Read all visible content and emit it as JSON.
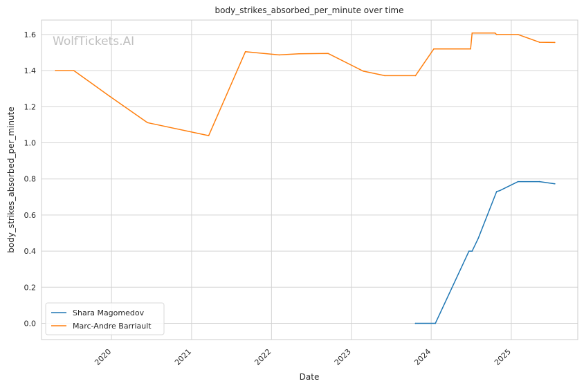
{
  "chart_data": {
    "type": "line",
    "title": "body_strikes_absorbed_per_minute over time",
    "xlabel": "Date",
    "ylabel": "body_strikes_absorbed_per_minute",
    "watermark": "WolfTickets.AI",
    "xlim": [
      "2019-02-15",
      "2025-11-01"
    ],
    "ylim": [
      -0.09,
      1.68
    ],
    "x_ticks": [
      "2020",
      "2021",
      "2022",
      "2023",
      "2024",
      "2025"
    ],
    "y_ticks": [
      "0.0",
      "0.2",
      "0.4",
      "0.6",
      "0.8",
      "1.0",
      "1.2",
      "1.4",
      "1.6"
    ],
    "grid": true,
    "legend_position": "lower-left",
    "colors": {
      "series_1": "#1f77b4",
      "series_2": "#ff7f0e",
      "grid": "#d3d3d3",
      "spine": "#cccccc"
    },
    "series": [
      {
        "name": "Shara Magomedov",
        "color": "#1f77b4",
        "points": [
          [
            "2023-10-21",
            0.0
          ],
          [
            "2024-01-20",
            0.0
          ],
          [
            "2024-06-22",
            0.4
          ],
          [
            "2024-07-06",
            0.4
          ],
          [
            "2024-08-03",
            0.47
          ],
          [
            "2024-10-26",
            0.73
          ],
          [
            "2024-11-09",
            0.735
          ],
          [
            "2025-02-01",
            0.785
          ],
          [
            "2025-05-10",
            0.785
          ],
          [
            "2025-07-19",
            0.773
          ]
        ]
      },
      {
        "name": "Marc-Andre Barriault",
        "color": "#ff7f0e",
        "points": [
          [
            "2019-04-20",
            1.4
          ],
          [
            "2019-07-13",
            1.4
          ],
          [
            "2019-12-21",
            1.26
          ],
          [
            "2020-06-13",
            1.112
          ],
          [
            "2021-03-20",
            1.04
          ],
          [
            "2021-09-04",
            1.505
          ],
          [
            "2022-02-05",
            1.487
          ],
          [
            "2022-05-07",
            1.493
          ],
          [
            "2022-09-17",
            1.495
          ],
          [
            "2023-02-25",
            1.397
          ],
          [
            "2023-06-03",
            1.372
          ],
          [
            "2023-10-21",
            1.372
          ],
          [
            "2024-01-13",
            1.52
          ],
          [
            "2024-06-29",
            1.52
          ],
          [
            "2024-07-06",
            1.608
          ],
          [
            "2024-10-19",
            1.608
          ],
          [
            "2024-10-26",
            1.6
          ],
          [
            "2025-02-01",
            1.6
          ],
          [
            "2025-05-10",
            1.557
          ],
          [
            "2025-07-19",
            1.556
          ]
        ]
      }
    ]
  }
}
